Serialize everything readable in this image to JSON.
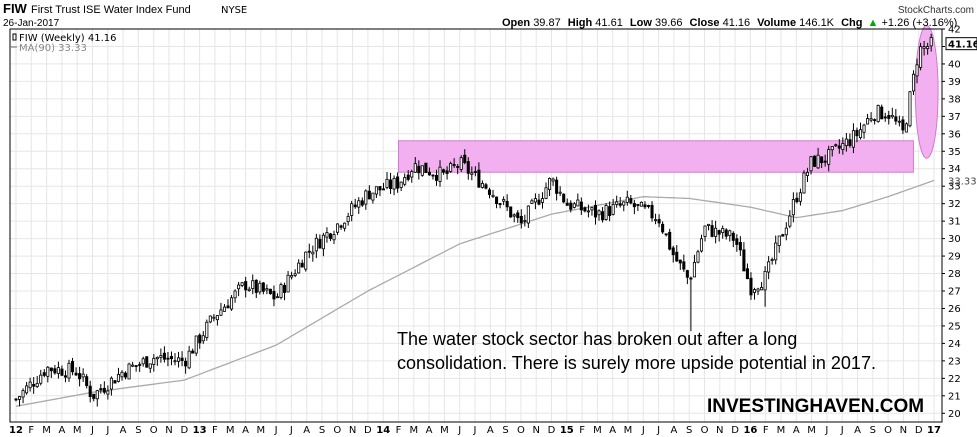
{
  "header": {
    "symbol": "FIW",
    "name": "First Trust ISE Water Index Fund",
    "exchange": "NYSE",
    "date": "26-Jan-2017",
    "brand": "StockCharts.com",
    "ohlc": [
      {
        "label": "Open",
        "value": "39.87"
      },
      {
        "label": "High",
        "value": "41.61"
      },
      {
        "label": "Low",
        "value": "39.66"
      },
      {
        "label": "Close",
        "value": "41.16"
      },
      {
        "label": "Volume",
        "value": "146.1K"
      },
      {
        "label": "Chg",
        "value": "+1.26 (+3.16%)",
        "direction": "up"
      }
    ]
  },
  "legend": [
    {
      "text": "FIW (Weekly) 41.16",
      "color": "#000000"
    },
    {
      "text": "MA(90) 33.33",
      "color": "#999999"
    }
  ],
  "annotation": {
    "lines": [
      "The water stock sector has broken out after a long",
      "consolidation. There is surely more upside potential in 2017."
    ]
  },
  "watermark": "INVESTINGHAVEN.COM",
  "price_tags": {
    "last": "41.16",
    "ma": "33.33"
  },
  "colors": {
    "candles": "#000000",
    "ma_line": "#aaaaaa",
    "highlight_fill": "#f3b0f0",
    "highlight_stroke": "#d07ad0",
    "grid": "#e6e6e6"
  },
  "chart_data": {
    "type": "candlestick",
    "timeframe": "weekly",
    "y_axis": {
      "side": "right",
      "min": 19.5,
      "max": 42,
      "ticks": [
        20,
        21,
        22,
        23,
        24,
        25,
        26,
        27,
        28,
        29,
        30,
        31,
        32,
        33,
        34,
        35,
        36,
        37,
        38,
        39,
        40,
        41,
        42
      ]
    },
    "x_axis": {
      "labels": [
        "12",
        "F",
        "M",
        "A",
        "M",
        "J",
        "J",
        "A",
        "S",
        "O",
        "N",
        "D",
        "13",
        "F",
        "M",
        "A",
        "M",
        "J",
        "J",
        "A",
        "S",
        "O",
        "N",
        "D",
        "14",
        "F",
        "M",
        "A",
        "M",
        "J",
        "J",
        "A",
        "S",
        "O",
        "N",
        "D",
        "15",
        "F",
        "M",
        "A",
        "M",
        "J",
        "J",
        "A",
        "S",
        "O",
        "N",
        "D",
        "16",
        "F",
        "M",
        "A",
        "M",
        "J",
        "J",
        "A",
        "S",
        "O",
        "N",
        "D",
        "17"
      ],
      "year_labels": [
        "12",
        "13",
        "14",
        "15",
        "16",
        "17"
      ],
      "start": "2012-01",
      "end": "2017-01"
    },
    "close_path": [
      [
        "2012-01",
        20.8
      ],
      [
        "2012-03",
        22.6
      ],
      [
        "2012-05",
        22.4
      ],
      [
        "2012-06",
        21.0
      ],
      [
        "2012-08",
        22.4
      ],
      [
        "2012-10",
        23.2
      ],
      [
        "2012-12",
        23.0
      ],
      [
        "2013-02",
        25.6
      ],
      [
        "2013-04",
        27.4
      ],
      [
        "2013-06",
        26.6
      ],
      [
        "2013-08",
        29.2
      ],
      [
        "2013-10",
        30.8
      ],
      [
        "2013-12",
        32.6
      ],
      [
        "2014-02",
        33.2
      ],
      [
        "2014-03",
        34.2
      ],
      [
        "2014-05",
        33.6
      ],
      [
        "2014-06",
        34.3
      ],
      [
        "2014-08",
        32.8
      ],
      [
        "2014-10",
        30.8
      ],
      [
        "2014-12",
        33.4
      ],
      [
        "2015-01",
        32.0
      ],
      [
        "2015-03",
        31.4
      ],
      [
        "2015-05",
        32.0
      ],
      [
        "2015-07",
        31.2
      ],
      [
        "2015-08",
        29.0
      ],
      [
        "2015-09",
        27.6
      ],
      [
        "2015-10",
        30.6
      ],
      [
        "2015-12",
        30.0
      ],
      [
        "2016-01",
        27.2
      ],
      [
        "2016-02",
        27.8
      ],
      [
        "2016-04",
        32.4
      ],
      [
        "2016-05",
        34.4
      ],
      [
        "2016-06",
        34.6
      ],
      [
        "2016-08",
        36.0
      ],
      [
        "2016-09",
        37.2
      ],
      [
        "2016-10",
        37.2
      ],
      [
        "2016-11",
        36.0
      ],
      [
        "2016-12",
        40.8
      ],
      [
        "2017-01",
        41.16
      ]
    ],
    "ma_path": [
      [
        "2012-01",
        20.4
      ],
      [
        "2012-06",
        21.2
      ],
      [
        "2012-12",
        21.9
      ],
      [
        "2013-06",
        23.9
      ],
      [
        "2013-12",
        27.0
      ],
      [
        "2014-06",
        29.7
      ],
      [
        "2014-12",
        31.4
      ],
      [
        "2015-06",
        32.4
      ],
      [
        "2015-09",
        32.3
      ],
      [
        "2016-01",
        31.8
      ],
      [
        "2016-04",
        31.2
      ],
      [
        "2016-07",
        31.6
      ],
      [
        "2016-10",
        32.4
      ],
      [
        "2017-01",
        33.33
      ]
    ],
    "dips": [
      [
        "2015-09",
        24.7
      ],
      [
        "2016-02",
        26.1
      ]
    ],
    "series": [
      {
        "name": "FIW (Weekly)",
        "type": "candlestick",
        "last": 41.16
      },
      {
        "name": "MA(90)",
        "type": "line",
        "last": 33.33
      }
    ],
    "highlights": [
      {
        "shape": "rect",
        "x_from": "2014-02",
        "x_to": "2016-11",
        "y_from": 33.8,
        "y_to": 35.6
      },
      {
        "shape": "ellipse",
        "center_x": "2016-12",
        "center_y": 38.4,
        "x_radius_weeks": 2,
        "y_radius": 3.8
      }
    ],
    "grid": true
  }
}
